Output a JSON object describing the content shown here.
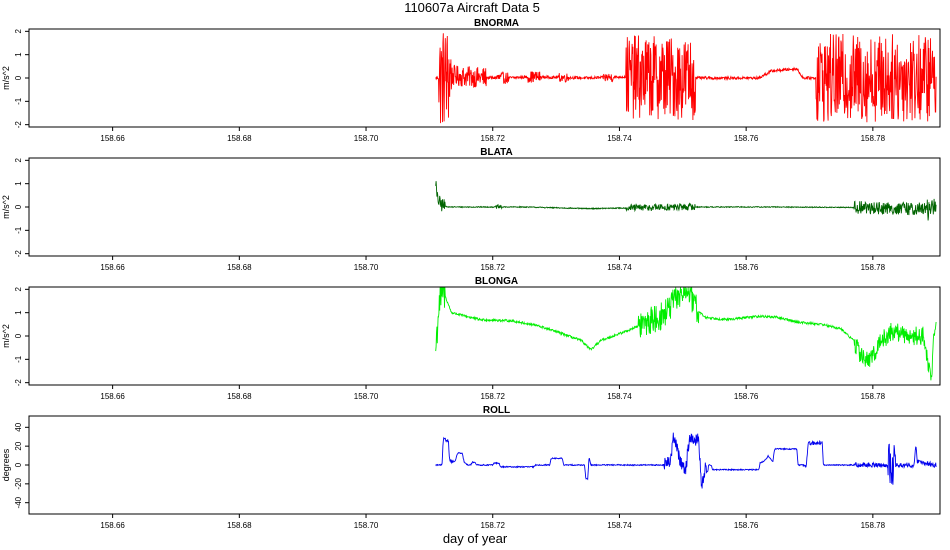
{
  "figure": {
    "title": "110607a   Aircraft Data 5",
    "xlabel": "day of year"
  },
  "chart_data": [
    {
      "type": "line",
      "title": "BNORMA",
      "ylabel": "m/s^2",
      "color": "#ff0000",
      "xlim": [
        158.6468,
        158.7906
      ],
      "ylim": [
        -2.1,
        2.1
      ],
      "xticks": [
        158.66,
        158.68,
        158.7,
        158.72,
        158.74,
        158.76,
        158.78
      ],
      "xtick_labels": [
        "158.66",
        "158.68",
        "158.70",
        "158.72",
        "158.74",
        "158.76",
        "158.78"
      ],
      "yticks": [
        -2,
        -1,
        0,
        1,
        2
      ],
      "ytick_labels": [
        "-2",
        "-1",
        "0",
        "1",
        "2"
      ],
      "x_start": 158.711,
      "x_end": 158.79,
      "noise": 0.06,
      "trend": [
        [
          158.711,
          0.0
        ],
        [
          158.712,
          0.0
        ],
        [
          158.7135,
          0.1
        ],
        [
          158.718,
          0.02
        ],
        [
          158.722,
          0.0
        ],
        [
          158.726,
          0.05
        ],
        [
          158.735,
          0.0
        ],
        [
          158.741,
          0.05
        ],
        [
          158.752,
          0.0
        ],
        [
          158.753,
          0.0
        ],
        [
          158.762,
          0.0
        ],
        [
          158.764,
          0.3
        ],
        [
          158.768,
          0.4
        ],
        [
          158.769,
          0.0
        ],
        [
          158.771,
          0.0
        ],
        [
          158.79,
          0.0
        ]
      ],
      "bursts": [
        [
          158.7115,
          158.7135,
          2.2
        ],
        [
          158.7135,
          158.719,
          0.45
        ],
        [
          158.7205,
          158.7225,
          0.25
        ],
        [
          158.7255,
          158.7275,
          0.25
        ],
        [
          158.7305,
          158.732,
          0.2
        ],
        [
          158.7375,
          158.739,
          0.2
        ],
        [
          158.741,
          158.752,
          1.8
        ],
        [
          158.771,
          158.79,
          1.9
        ]
      ]
    },
    {
      "type": "line",
      "title": "BLATA",
      "ylabel": "m/s^2",
      "color": "#006400",
      "xlim": [
        158.6468,
        158.7906
      ],
      "ylim": [
        -2.1,
        2.1
      ],
      "xticks": [
        158.66,
        158.68,
        158.7,
        158.72,
        158.74,
        158.76,
        158.78
      ],
      "xtick_labels": [
        "158.66",
        "158.68",
        "158.70",
        "158.72",
        "158.74",
        "158.76",
        "158.78"
      ],
      "yticks": [
        -2,
        -1,
        0,
        1,
        2
      ],
      "ytick_labels": [
        "-2",
        "-1",
        "0",
        "1",
        "2"
      ],
      "x_start": 158.711,
      "x_end": 158.79,
      "noise": 0.02,
      "trend": [
        [
          158.711,
          1.15
        ],
        [
          158.7112,
          0.4
        ],
        [
          158.7118,
          0.1
        ],
        [
          158.713,
          0.0
        ],
        [
          158.725,
          0.0
        ],
        [
          158.735,
          -0.07
        ],
        [
          158.75,
          0.0
        ],
        [
          158.765,
          0.0
        ],
        [
          158.777,
          -0.02
        ],
        [
          158.79,
          -0.1
        ]
      ],
      "bursts": [
        [
          158.711,
          158.7125,
          0.3
        ],
        [
          158.7205,
          158.7215,
          0.08
        ],
        [
          158.741,
          158.752,
          0.15
        ],
        [
          158.777,
          158.79,
          0.28
        ],
        [
          158.7885,
          158.7902,
          0.5
        ]
      ]
    },
    {
      "type": "line",
      "title": "BLONGA",
      "ylabel": "m/s^2",
      "color": "#00ee00",
      "xlim": [
        158.6468,
        158.7906
      ],
      "ylim": [
        -2.1,
        2.1
      ],
      "xticks": [
        158.66,
        158.68,
        158.7,
        158.72,
        158.74,
        158.76,
        158.78
      ],
      "xtick_labels": [
        "158.66",
        "158.68",
        "158.70",
        "158.72",
        "158.74",
        "158.76",
        "158.78"
      ],
      "yticks": [
        -2,
        -1,
        0,
        1,
        2
      ],
      "ytick_labels": [
        "-2",
        "-1",
        "0",
        "1",
        "2"
      ],
      "x_start": 158.711,
      "x_end": 158.79,
      "noise": 0.05,
      "trend": [
        [
          158.711,
          -0.6
        ],
        [
          158.7115,
          1.3
        ],
        [
          158.7122,
          2.1
        ],
        [
          158.7125,
          1.7
        ],
        [
          158.7135,
          1.0
        ],
        [
          158.718,
          0.7
        ],
        [
          158.723,
          0.65
        ],
        [
          158.727,
          0.45
        ],
        [
          158.731,
          0.1
        ],
        [
          158.734,
          -0.2
        ],
        [
          158.7355,
          -0.6
        ],
        [
          158.737,
          -0.2
        ],
        [
          158.739,
          0.0
        ],
        [
          158.741,
          0.2
        ],
        [
          158.744,
          0.55
        ],
        [
          158.747,
          0.9
        ],
        [
          158.749,
          1.6
        ],
        [
          158.7505,
          2.1
        ],
        [
          158.752,
          1.2
        ],
        [
          158.7535,
          0.8
        ],
        [
          158.757,
          0.7
        ],
        [
          158.762,
          0.85
        ],
        [
          158.765,
          0.8
        ],
        [
          158.768,
          0.6
        ],
        [
          158.772,
          0.5
        ],
        [
          158.775,
          0.3
        ],
        [
          158.777,
          -0.2
        ],
        [
          158.778,
          -0.8
        ],
        [
          158.7795,
          -1.1
        ],
        [
          158.781,
          -0.3
        ],
        [
          158.783,
          0.2
        ],
        [
          158.786,
          0.0
        ],
        [
          158.788,
          0.0
        ],
        [
          158.7892,
          -1.9
        ],
        [
          158.7897,
          0.2
        ],
        [
          158.79,
          0.3
        ]
      ],
      "bursts": [
        [
          158.711,
          158.7125,
          0.8
        ],
        [
          158.743,
          158.7525,
          0.6
        ],
        [
          158.777,
          158.79,
          0.4
        ]
      ]
    },
    {
      "type": "line",
      "title": "ROLL",
      "ylabel": "degrees",
      "color": "#0000ee",
      "xlim": [
        158.6468,
        158.7906
      ],
      "ylim": [
        -52,
        52
      ],
      "xticks": [
        158.66,
        158.68,
        158.7,
        158.72,
        158.74,
        158.76,
        158.78
      ],
      "xtick_labels": [
        "158.66",
        "158.68",
        "158.70",
        "158.72",
        "158.74",
        "158.76",
        "158.78"
      ],
      "yticks": [
        -40,
        -20,
        0,
        20,
        40
      ],
      "ytick_labels": [
        "-40",
        "-20",
        "0",
        "20",
        "40"
      ],
      "x_start": 158.711,
      "x_end": 158.79,
      "noise": 0.6,
      "trend": [
        [
          158.711,
          0
        ],
        [
          158.712,
          0
        ],
        [
          158.7122,
          27
        ],
        [
          158.7128,
          26
        ],
        [
          158.713,
          27
        ],
        [
          158.7132,
          5
        ],
        [
          158.714,
          3
        ],
        [
          158.7145,
          13
        ],
        [
          158.7152,
          12
        ],
        [
          158.7155,
          3
        ],
        [
          158.716,
          0
        ],
        [
          158.7165,
          0
        ],
        [
          158.7168,
          3
        ],
        [
          158.7172,
          3
        ],
        [
          158.7175,
          0
        ],
        [
          158.72,
          0
        ],
        [
          158.7202,
          2
        ],
        [
          158.721,
          2
        ],
        [
          158.7212,
          -2
        ],
        [
          158.7265,
          -2
        ],
        [
          158.7268,
          0
        ],
        [
          158.729,
          0
        ],
        [
          158.7292,
          7
        ],
        [
          158.731,
          7
        ],
        [
          158.7312,
          0
        ],
        [
          158.7335,
          0
        ],
        [
          158.7345,
          0
        ],
        [
          158.7347,
          -15
        ],
        [
          158.735,
          -15
        ],
        [
          158.7352,
          8
        ],
        [
          158.7355,
          0
        ],
        [
          158.747,
          0
        ],
        [
          158.748,
          4
        ],
        [
          158.7485,
          28
        ],
        [
          158.749,
          22
        ],
        [
          158.7495,
          5
        ],
        [
          158.75,
          0
        ],
        [
          158.7505,
          -4
        ],
        [
          158.751,
          27
        ],
        [
          158.7525,
          27
        ],
        [
          158.753,
          -25
        ],
        [
          158.7535,
          -5
        ],
        [
          158.754,
          0
        ],
        [
          158.7545,
          0
        ],
        [
          158.7547,
          -5
        ],
        [
          158.762,
          -5
        ],
        [
          158.7622,
          2
        ],
        [
          158.763,
          5
        ],
        [
          158.7635,
          10
        ],
        [
          158.7642,
          3
        ],
        [
          158.7645,
          17
        ],
        [
          158.768,
          17
        ],
        [
          158.7682,
          0
        ],
        [
          158.7695,
          0
        ],
        [
          158.7698,
          23
        ],
        [
          158.7715,
          23
        ],
        [
          158.772,
          25
        ],
        [
          158.7722,
          0
        ],
        [
          158.785,
          0
        ],
        [
          158.7865,
          0
        ],
        [
          158.7868,
          20
        ],
        [
          158.787,
          4
        ],
        [
          158.788,
          2
        ],
        [
          158.79,
          0
        ]
      ],
      "bursts": [
        [
          158.712,
          158.714,
          2
        ],
        [
          158.747,
          158.754,
          7
        ],
        [
          158.769,
          158.772,
          2
        ],
        [
          158.777,
          158.79,
          2.5
        ],
        [
          158.7824,
          158.7836,
          22
        ]
      ]
    }
  ]
}
